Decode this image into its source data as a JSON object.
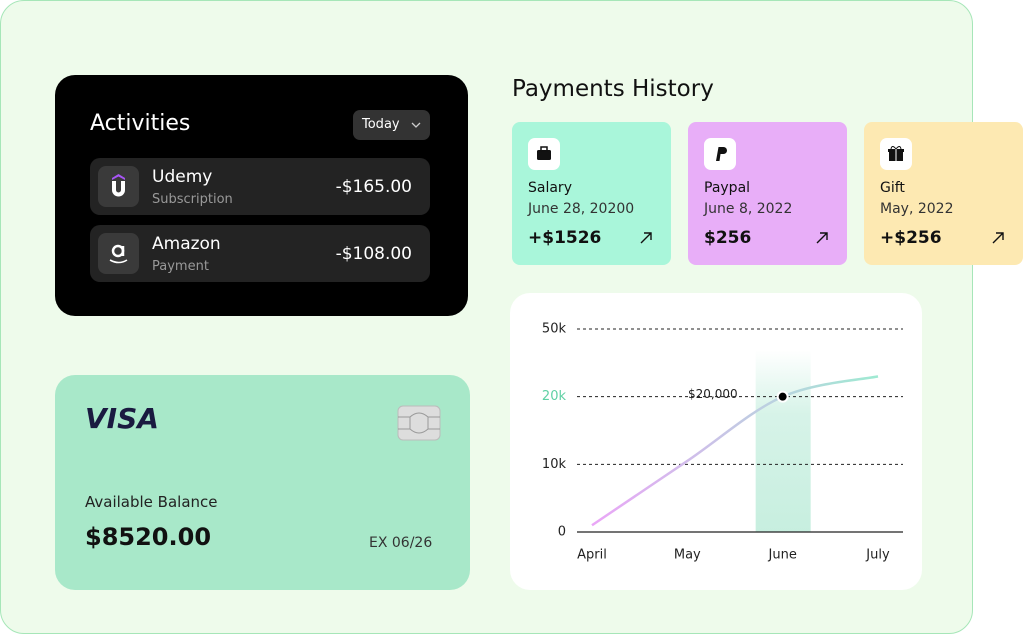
{
  "activities": {
    "title": "Activities",
    "filter": "Today",
    "items": [
      {
        "name": "Udemy",
        "kind": "Subscription",
        "amount": "-$165.00"
      },
      {
        "name": "Amazon",
        "kind": "Payment",
        "amount": "-$108.00"
      }
    ]
  },
  "card": {
    "brand": "VISA",
    "balance_label": "Available Balance",
    "balance": "$8520.00",
    "expiry": "EX 06/26"
  },
  "payments": {
    "title": "Payments History",
    "items": [
      {
        "name": "Salary",
        "date": "June 28, 20200",
        "amount": "+$1526",
        "color": "#a9f6da"
      },
      {
        "name": "Paypal",
        "date": "June 8, 2022",
        "amount": "$256",
        "color": "#e8aef8"
      },
      {
        "name": "Gift",
        "date": "May, 2022",
        "amount": "+$256",
        "color": "#fde9b2"
      }
    ]
  },
  "chart_data": {
    "type": "line",
    "categories": [
      "April",
      "May",
      "June",
      "July"
    ],
    "values": [
      1000,
      10500,
      20000,
      29000
    ],
    "value_labels": [
      null,
      null,
      "$20,000",
      null
    ],
    "gradient": [
      "#eaa6f7",
      "#9fead2"
    ],
    "highlight_color": "#5fd0a4",
    "ylim": [
      0,
      50000
    ],
    "yticks": [
      {
        "value": 0,
        "label": "0"
      },
      {
        "value": 10000,
        "label": "10k"
      },
      {
        "value": 20000,
        "label": "20k"
      },
      {
        "value": 50000,
        "label": "50k"
      }
    ],
    "grid": true
  }
}
